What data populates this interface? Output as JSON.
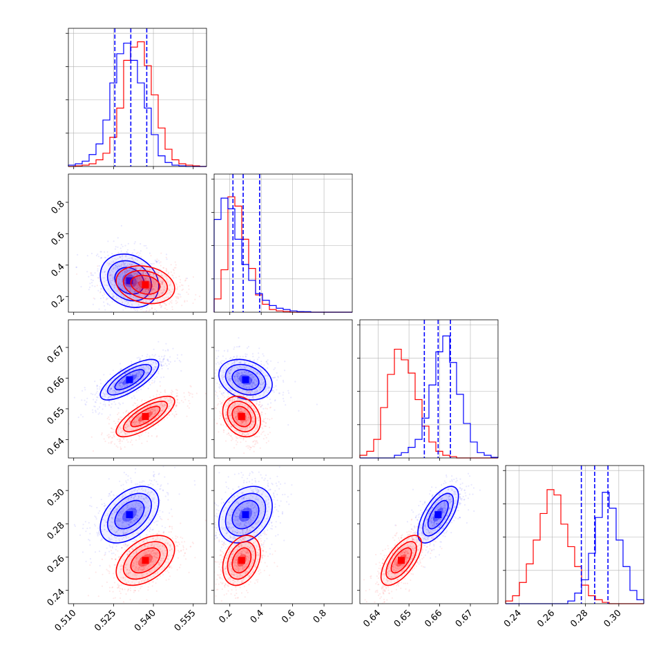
{
  "colors": {
    "model_a": "#0000ff",
    "model_b": "#ff0000"
  },
  "chart_data": {
    "type": "corner",
    "params": [
      {
        "range": [
          0.508,
          0.56
        ],
        "ticks": [
          "0.510",
          "0.525",
          "0.540",
          "0.555"
        ],
        "tick_values": [
          0.51,
          0.525,
          0.54,
          0.555
        ]
      },
      {
        "range": [
          0.1,
          0.98
        ],
        "ticks": [
          "0.2",
          "0.4",
          "0.6",
          "0.8"
        ],
        "tick_values": [
          0.2,
          0.4,
          0.6,
          0.8
        ]
      },
      {
        "range": [
          0.634,
          0.679
        ],
        "ticks": [
          "0.64",
          "0.65",
          "0.66",
          "0.67"
        ],
        "tick_values": [
          0.64,
          0.65,
          0.66,
          0.67
        ]
      },
      {
        "range": [
          0.232,
          0.315
        ],
        "ticks": [
          "0.24",
          "0.26",
          "0.28",
          "0.30"
        ],
        "tick_values": [
          0.24,
          0.26,
          0.28,
          0.3
        ]
      }
    ],
    "series": [
      {
        "color": "#0000ff",
        "means": [
          0.531,
          0.3,
          0.6595,
          0.2855
        ],
        "sigmas": [
          0.0055,
          0.085,
          0.0033,
          0.0085
        ],
        "quantiles": [
          [
            0.5255,
            0.5315,
            0.5375
          ],
          [
            0.22,
            0.285,
            0.39
          ],
          [
            0.655,
            0.6595,
            0.6635
          ],
          [
            0.2775,
            0.2855,
            0.2935
          ]
        ],
        "hist": [
          [
            0.01,
            0.02,
            0.04,
            0.09,
            0.17,
            0.35,
            0.63,
            0.85,
            0.93,
            0.8,
            0.63,
            0.44,
            0.24,
            0.08,
            0.03,
            0.01,
            0.005,
            0,
            0,
            0
          ],
          [
            0.7,
            0.86,
            0.78,
            0.55,
            0.36,
            0.24,
            0.14,
            0.09,
            0.05,
            0.03,
            0.02,
            0.01,
            0.005,
            0.004,
            0,
            0,
            0,
            0,
            0,
            0
          ],
          [
            0,
            0,
            0,
            0,
            0,
            0.02,
            0.04,
            0.08,
            0.14,
            0.3,
            0.55,
            0.8,
            0.92,
            0.72,
            0.48,
            0.26,
            0.12,
            0.04,
            0.02,
            0.005
          ],
          [
            0,
            0,
            0,
            0,
            0,
            0,
            0,
            0,
            0,
            0.02,
            0.08,
            0.18,
            0.38,
            0.65,
            0.84,
            0.72,
            0.48,
            0.28,
            0.1,
            0.03
          ]
        ]
      },
      {
        "color": "#ff0000",
        "means": [
          0.537,
          0.275,
          0.6475,
          0.258
        ],
        "sigmas": [
          0.0055,
          0.06,
          0.0033,
          0.0075
        ],
        "quantiles": [],
        "hist": [
          [
            0,
            0.005,
            0.01,
            0.02,
            0.05,
            0.1,
            0.22,
            0.44,
            0.8,
            0.9,
            0.94,
            0.76,
            0.54,
            0.29,
            0.13,
            0.05,
            0.02,
            0.01,
            0.005,
            0
          ],
          [
            0.1,
            0.32,
            0.87,
            0.8,
            0.55,
            0.33,
            0.13,
            0.06,
            0.02,
            0.01,
            0.005,
            0,
            0,
            0,
            0,
            0,
            0,
            0,
            0,
            0
          ],
          [
            0.02,
            0.05,
            0.14,
            0.38,
            0.63,
            0.82,
            0.74,
            0.64,
            0.44,
            0.24,
            0.12,
            0.05,
            0.02,
            0.01,
            0,
            0,
            0,
            0,
            0,
            0
          ],
          [
            0.02,
            0.06,
            0.16,
            0.3,
            0.48,
            0.68,
            0.86,
            0.82,
            0.6,
            0.43,
            0.28,
            0.14,
            0.06,
            0.03,
            0.01,
            0,
            0,
            0,
            0,
            0
          ]
        ]
      }
    ],
    "correlations": [
      [
        0,
        1,
        -0.2
      ],
      [
        0,
        2,
        0.75
      ],
      [
        0,
        3,
        0.45
      ],
      [
        1,
        2,
        -0.25
      ],
      [
        1,
        3,
        0.3
      ],
      [
        2,
        3,
        0.65
      ]
    ]
  }
}
